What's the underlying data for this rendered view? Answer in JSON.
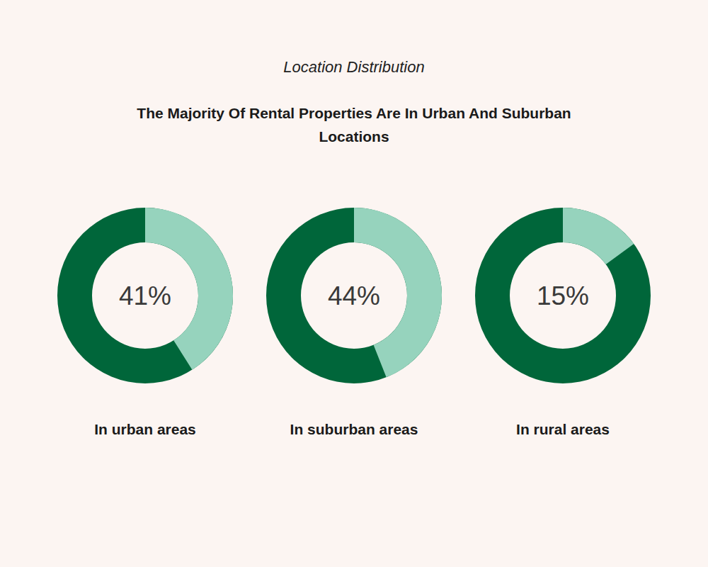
{
  "chart_data": {
    "type": "donut",
    "subtitle": "Location Distribution",
    "title": "The Majority Of Rental Properties Are In Urban And Suburban Locations",
    "categories": [
      "In urban areas",
      "In suburban areas",
      "In rural areas"
    ],
    "values": [
      41,
      44,
      15
    ],
    "value_labels": [
      "41%",
      "44%",
      "15%"
    ],
    "data_labels": true,
    "color": "#96d3bd"
  }
}
